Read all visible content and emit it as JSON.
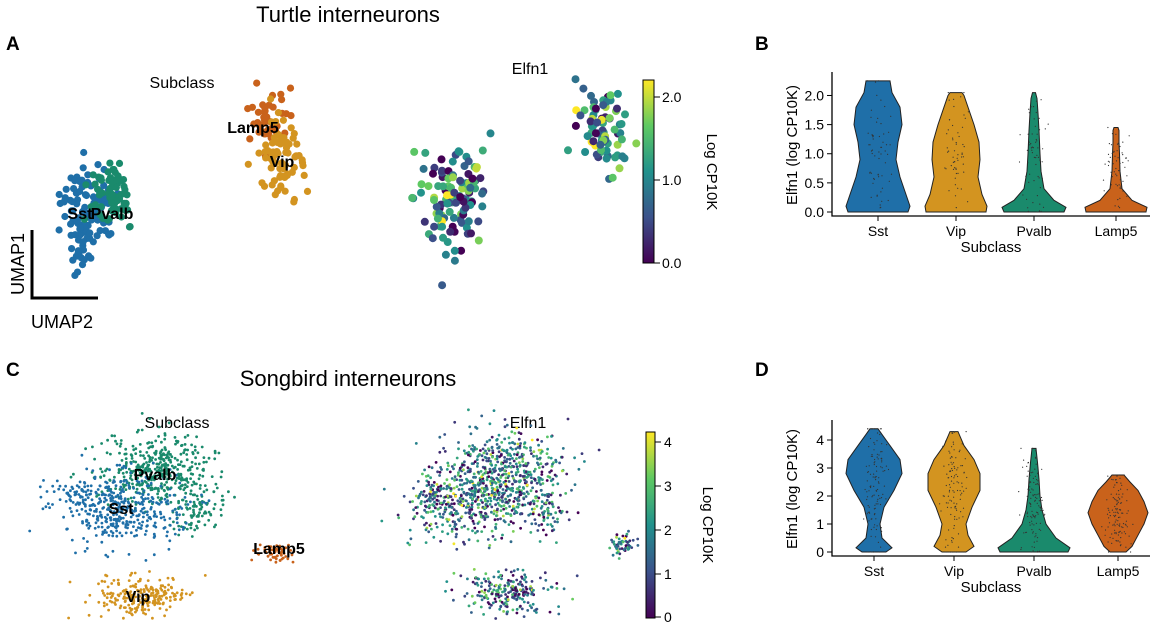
{
  "panels": {
    "A": {
      "letter": "A",
      "title": "Turtle interneurons",
      "subclass_title": "Subclass",
      "gene_title": "Elfn1",
      "umap_x_label": "UMAP2",
      "umap_y_label": "UMAP1",
      "cluster_labels": [
        "Lamp5",
        "Vip",
        "Sst",
        "Pvalb"
      ],
      "colorbar": {
        "label": "Log CP10K",
        "ticks": [
          "0.0",
          "1.0",
          "2.0"
        ],
        "min": 0,
        "max": 2.2
      }
    },
    "C": {
      "letter": "C",
      "title": "Songbird interneurons",
      "subclass_title": "Subclass",
      "gene_title": "Elfn1",
      "cluster_labels": [
        "Pvalb",
        "Sst",
        "Lamp5",
        "Vip"
      ],
      "colorbar": {
        "label": "Log CP10K",
        "ticks": [
          "0",
          "1",
          "2",
          "3",
          "4"
        ],
        "min": 0,
        "max": 4.2
      }
    },
    "B": {
      "letter": "B"
    },
    "D": {
      "letter": "D"
    }
  },
  "colors": {
    "Sst": "#1f6fa8",
    "Vip": "#d39420",
    "Pvalb": "#1a8a6c",
    "Lamp5": "#c9621b"
  },
  "chart_data": [
    {
      "type": "violin",
      "panel": "B",
      "categories": [
        "Sst",
        "Vip",
        "Pvalb",
        "Lamp5"
      ],
      "xlabel": "Subclass",
      "ylabel": "Elfn1 (log CP10K)",
      "ylim": [
        0,
        2.3
      ],
      "yticks": [
        "0.0",
        "0.5",
        "1.0",
        "1.5",
        "2.0"
      ],
      "max_values": [
        2.25,
        2.05,
        2.05,
        1.45
      ]
    },
    {
      "type": "violin",
      "panel": "D",
      "categories": [
        "Sst",
        "Vip",
        "Pvalb",
        "Lamp5"
      ],
      "xlabel": "Subclass",
      "ylabel": "Elfn1 (log CP10K)",
      "ylim": [
        0,
        4.5
      ],
      "yticks": [
        "0",
        "1",
        "2",
        "3",
        "4"
      ],
      "max_values": [
        4.4,
        4.3,
        3.7,
        2.75
      ]
    }
  ]
}
